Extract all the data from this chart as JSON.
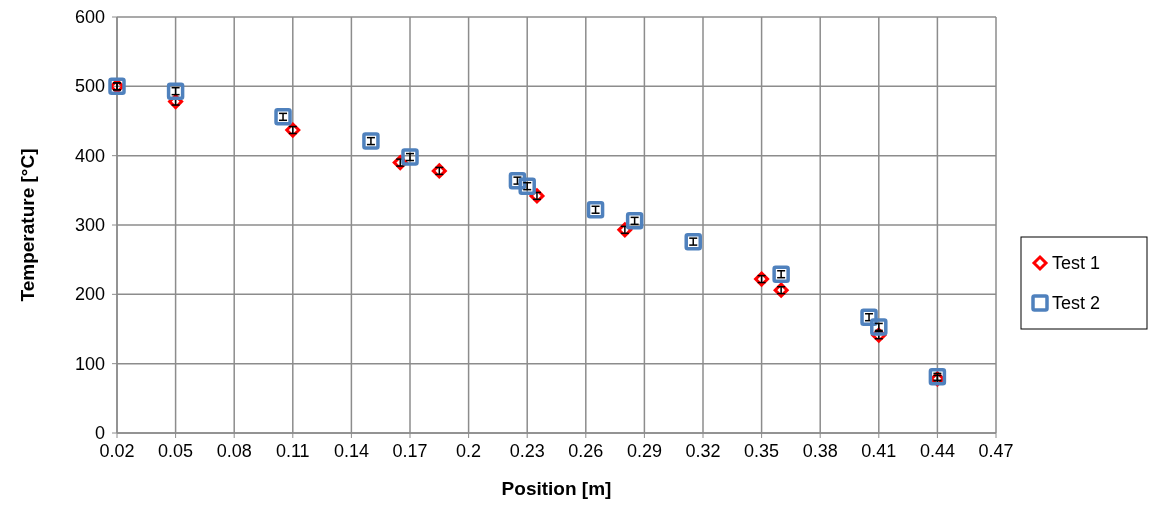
{
  "chart_data": {
    "type": "scatter",
    "xlabel": "Position [m]",
    "ylabel": "Temperature [°C]",
    "xlim": [
      0.02,
      0.47
    ],
    "xticks": [
      0.02,
      0.05,
      0.08,
      0.11,
      0.14,
      0.17,
      0.2,
      0.23,
      0.26,
      0.29,
      0.32,
      0.35,
      0.38,
      0.41,
      0.44,
      0.47
    ],
    "ylim": [
      0,
      600
    ],
    "yticks": [
      0,
      100,
      200,
      300,
      400,
      500,
      600
    ],
    "grid": true,
    "legend": "right",
    "series": [
      {
        "name": "Test 1",
        "color": "#ff0000",
        "marker": "diamond",
        "x": [
          0.02,
          0.05,
          0.11,
          0.165,
          0.185,
          0.235,
          0.28,
          0.35,
          0.36,
          0.41,
          0.44
        ],
        "values": [
          500,
          478,
          437,
          390,
          378,
          342,
          293,
          222,
          206,
          141,
          78
        ],
        "errors": [
          5,
          5,
          5,
          5,
          5,
          5,
          5,
          5,
          5,
          5,
          5
        ]
      },
      {
        "name": "Test 2",
        "color": "#4f81bd",
        "marker": "square",
        "x": [
          0.02,
          0.05,
          0.105,
          0.15,
          0.17,
          0.225,
          0.23,
          0.265,
          0.285,
          0.315,
          0.36,
          0.405,
          0.41,
          0.44
        ],
        "values": [
          500,
          493,
          456,
          421,
          398,
          364,
          356,
          322,
          306,
          276,
          229,
          167,
          153,
          81
        ],
        "errors": [
          5,
          5,
          5,
          5,
          5,
          5,
          5,
          5,
          5,
          5,
          5,
          5,
          5,
          5
        ]
      }
    ]
  }
}
